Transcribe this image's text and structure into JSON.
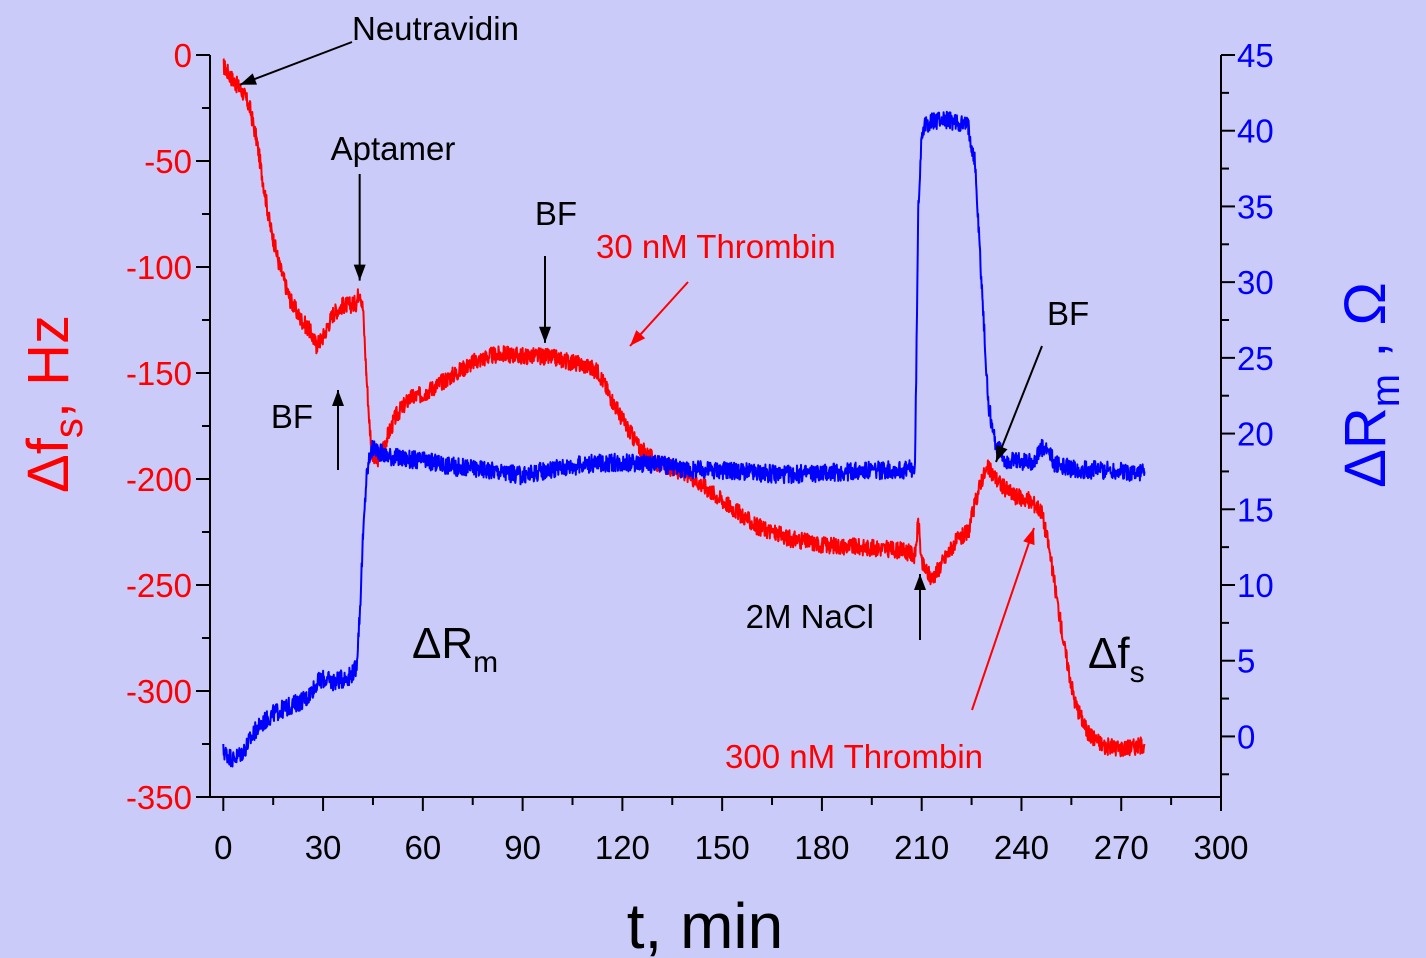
{
  "colors": {
    "background": "#cbcbfa",
    "frequency": "#ff0000",
    "resistance": "#0000ff",
    "axis": "#000000",
    "annotation": "#000000"
  },
  "chart_data": {
    "type": "line",
    "title": "",
    "xlabel": "t, min",
    "ylabel_left": {
      "prefix": "Δf",
      "sub": "s",
      "suffix": ", Hz"
    },
    "ylabel_right": {
      "prefix": "ΔR",
      "sub": "m",
      "suffix": " , Ω"
    },
    "xlim": [
      -4,
      300
    ],
    "ylim_left": [
      -350,
      0
    ],
    "ylim_right": [
      -4,
      45
    ],
    "x_ticks": [
      "0",
      "30",
      "60",
      "90",
      "120",
      "150",
      "180",
      "210",
      "240",
      "270",
      "300"
    ],
    "y_left_ticks": [
      "0",
      "-50",
      "-100",
      "-150",
      "-200",
      "-250",
      "-300",
      "-350"
    ],
    "y_right_ticks": [
      "0",
      "5",
      "10",
      "15",
      "20",
      "25",
      "30",
      "35",
      "40",
      "45"
    ],
    "grid": false,
    "legend": "none",
    "series": [
      {
        "name": "Δfs",
        "axis": "left",
        "x": [
          0,
          3,
          6,
          8,
          10,
          12,
          14,
          17,
          20,
          23,
          26,
          28,
          30,
          33,
          36,
          38,
          40,
          41,
          42,
          43,
          44,
          45,
          46,
          48,
          52,
          56,
          60,
          65,
          70,
          75,
          80,
          85,
          90,
          95,
          100,
          105,
          110,
          113,
          116,
          120,
          125,
          130,
          140,
          150,
          160,
          170,
          180,
          190,
          200,
          205,
          208,
          209,
          210,
          213,
          216,
          220,
          224,
          226,
          228,
          230,
          234,
          238,
          242,
          244,
          246,
          248,
          250,
          253,
          256,
          260,
          265,
          270,
          275,
          277
        ],
        "y": [
          -5,
          -12,
          -18,
          -25,
          -40,
          -60,
          -80,
          -100,
          -115,
          -124,
          -130,
          -137,
          -133,
          -122,
          -118,
          -118,
          -117,
          -110,
          -120,
          -150,
          -175,
          -190,
          -192,
          -185,
          -170,
          -162,
          -160,
          -155,
          -150,
          -145,
          -142,
          -141,
          -142,
          -142,
          -143,
          -145,
          -147,
          -150,
          -160,
          -172,
          -185,
          -192,
          -198,
          -210,
          -222,
          -228,
          -231,
          -232,
          -233,
          -234,
          -236,
          -220,
          -240,
          -247,
          -240,
          -230,
          -225,
          -212,
          -200,
          -195,
          -203,
          -208,
          -210,
          -212,
          -215,
          -230,
          -250,
          -280,
          -305,
          -320,
          -326,
          -327,
          -326,
          -325
        ]
      },
      {
        "name": "ΔRm",
        "axis": "right",
        "x": [
          0,
          3,
          6,
          10,
          15,
          20,
          25,
          28,
          30,
          33,
          36,
          38,
          40,
          41,
          42,
          43,
          44,
          45,
          46,
          48,
          55,
          60,
          70,
          80,
          90,
          95,
          100,
          110,
          120,
          130,
          140,
          150,
          160,
          170,
          180,
          190,
          200,
          205,
          208,
          209,
          210,
          212,
          216,
          220,
          224,
          226,
          228,
          230,
          232,
          235,
          240,
          244,
          246,
          248,
          250,
          255,
          260,
          265,
          270,
          275,
          277
        ],
        "y": [
          -1,
          -1.5,
          -1,
          0.5,
          1.5,
          2,
          2.5,
          3.5,
          3.8,
          3.6,
          3.8,
          4,
          4.5,
          8,
          13,
          17,
          18.5,
          19,
          19,
          18.6,
          18.3,
          18.2,
          17.8,
          17.6,
          17.2,
          17.5,
          17.7,
          18,
          18.1,
          18,
          17.6,
          17.6,
          17.4,
          17.3,
          17.4,
          17.5,
          17.6,
          17.6,
          17.7,
          35,
          40,
          40.5,
          40.8,
          40.6,
          40.3,
          38,
          30,
          22,
          19.5,
          18.2,
          18.1,
          18.2,
          19,
          18.8,
          18,
          17.7,
          17.6,
          17.6,
          17.5,
          17.4,
          17.5
        ]
      }
    ],
    "annotations": [
      {
        "text": "Neutravidin",
        "color": "#000000",
        "data": {
          "x": 5,
          "y": -14,
          "axis": "left"
        }
      },
      {
        "text": "Aptamer",
        "color": "#000000",
        "data": {
          "x": 41,
          "y": -97,
          "axis": "left"
        }
      },
      {
        "text": "BF",
        "color": "#000000",
        "data": {
          "x": 27,
          "y": -185,
          "axis": "left"
        }
      },
      {
        "text": "BF",
        "color": "#000000",
        "data": {
          "x": 90,
          "y": -132,
          "axis": "left"
        }
      },
      {
        "text": "30 nM Thrombin",
        "color": "#ff0000",
        "data": {
          "x": 115,
          "y": -145,
          "axis": "left"
        }
      },
      {
        "text": "2M NaCl",
        "color": "#000000",
        "data": {
          "x": 205,
          "y": -240,
          "axis": "left"
        }
      },
      {
        "text": "BF",
        "color": "#000000",
        "data": {
          "x": 229,
          "y": -193,
          "axis": "left"
        }
      },
      {
        "text": "300 nM Thrombin",
        "color": "#ff0000",
        "data": {
          "x": 240,
          "y": -220,
          "axis": "left"
        }
      },
      {
        "text": "ΔRm",
        "color": "#000000",
        "data": {
          "x": 50,
          "y": 3,
          "axis": "right"
        }
      },
      {
        "text": "Δfs",
        "color": "#000000",
        "data": {
          "x": 262,
          "y": -280,
          "axis": "left"
        }
      }
    ]
  }
}
